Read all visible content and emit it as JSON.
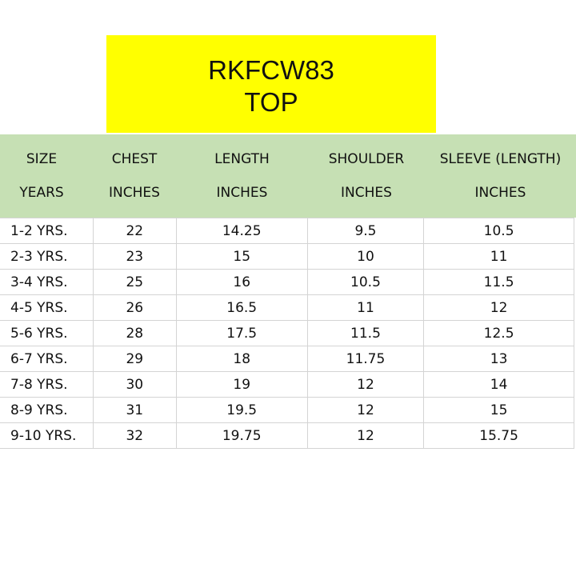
{
  "title": {
    "code": "RKFCW83",
    "subtitle": "TOP"
  },
  "headers": [
    {
      "top": "SIZE",
      "bottom": "YEARS"
    },
    {
      "top": "CHEST",
      "bottom": "INCHES"
    },
    {
      "top": "LENGTH",
      "bottom": "INCHES"
    },
    {
      "top": "SHOULDER",
      "bottom": "INCHES"
    },
    {
      "top": "SLEEVE (LENGTH)",
      "bottom": "INCHES"
    }
  ],
  "rows": [
    [
      "1-2 YRS.",
      "22",
      "14.25",
      "9.5",
      "10.5"
    ],
    [
      "2-3 YRS.",
      "23",
      "15",
      "10",
      "11"
    ],
    [
      "3-4 YRS.",
      "25",
      "16",
      "10.5",
      "11.5"
    ],
    [
      "4-5 YRS.",
      "26",
      "16.5",
      "11",
      "12"
    ],
    [
      "5-6 YRS.",
      "28",
      "17.5",
      "11.5",
      "12.5"
    ],
    [
      "6-7 YRS.",
      "29",
      "18",
      "11.75",
      "13"
    ],
    [
      "7-8 YRS.",
      "30",
      "19",
      "12",
      "14"
    ],
    [
      "8-9 YRS.",
      "31",
      "19.5",
      "12",
      "15"
    ],
    [
      "9-10 YRS.",
      "32",
      "19.75",
      "12",
      "15.75"
    ]
  ],
  "colors": {
    "title_bg": "#ffff00",
    "header_bg": "#c6e0b4"
  }
}
